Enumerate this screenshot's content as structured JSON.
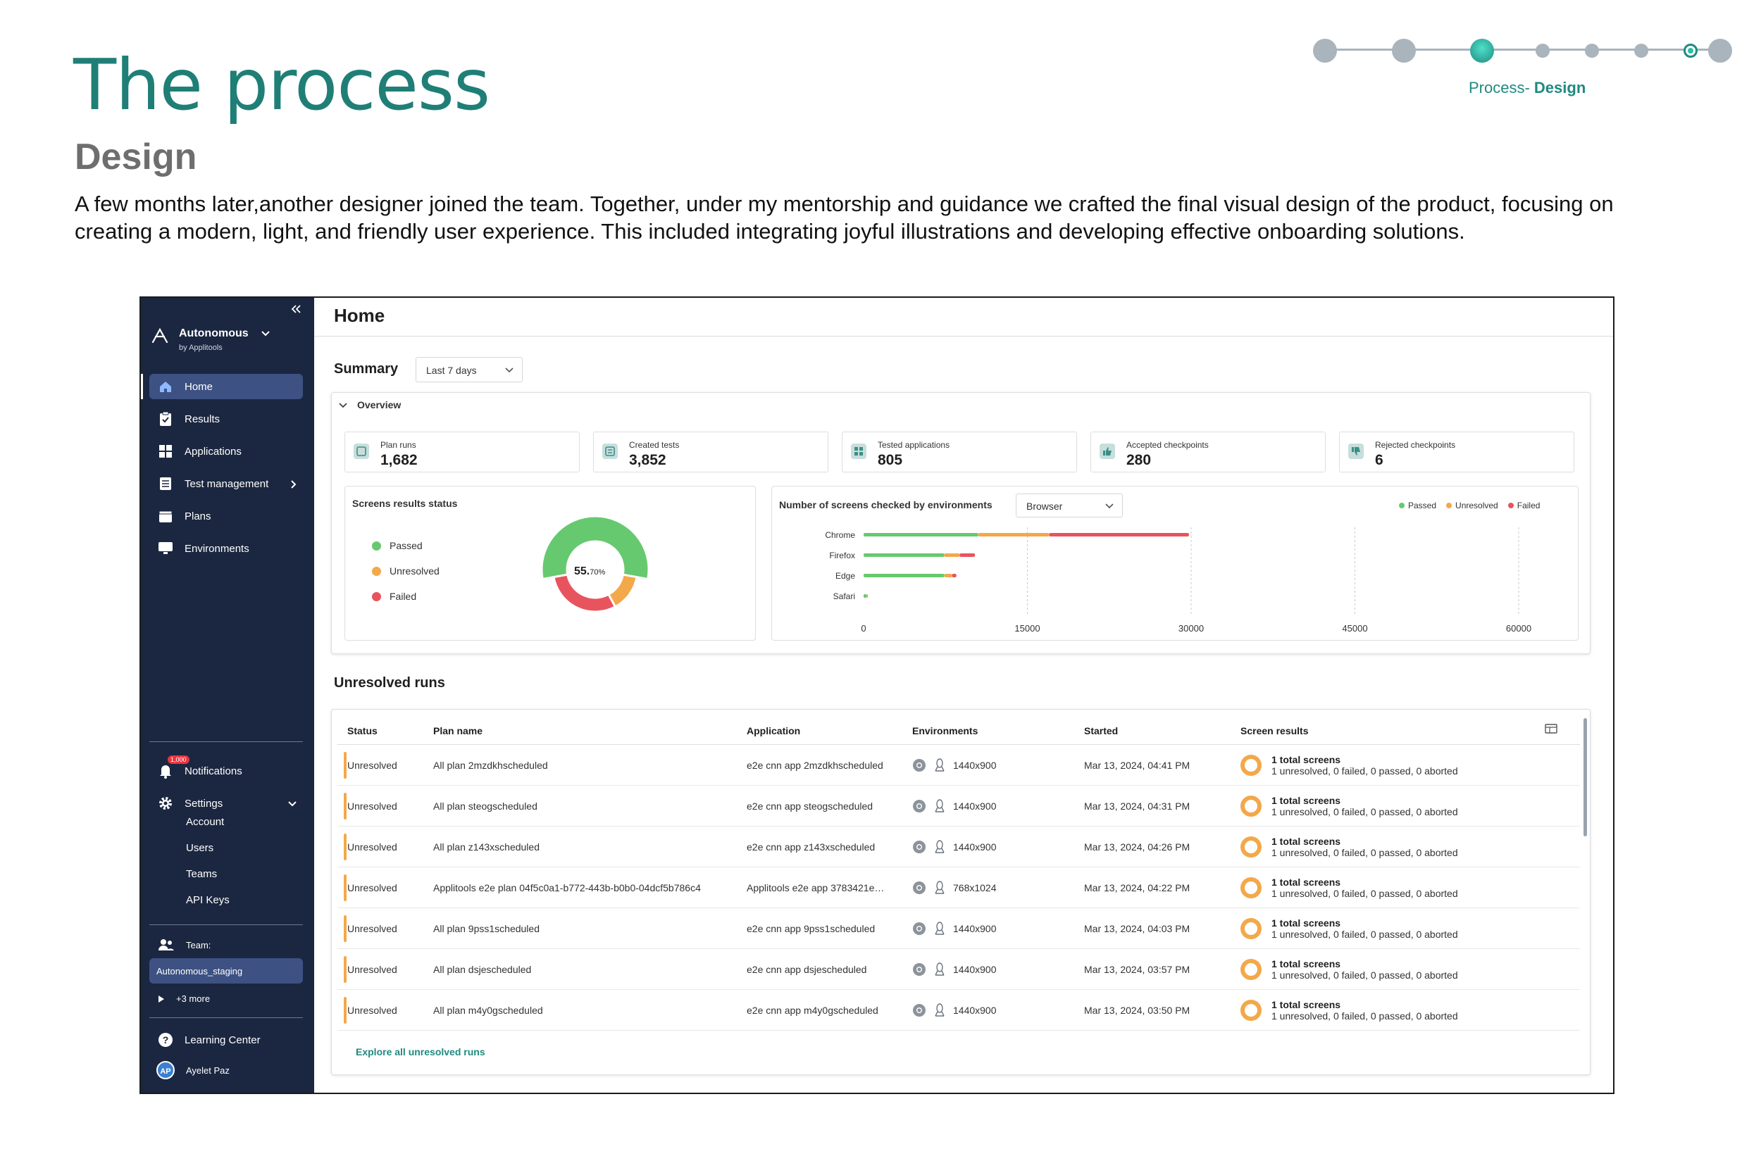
{
  "slide": {
    "title": "The process",
    "subtitle": "Design",
    "description": "A few months later,another designer joined the team. Together, under my mentorship and guidance we crafted the final visual design of the product, focusing on creating a modern, light, and friendly user experience. This included integrating joyful illustrations and developing effective onboarding solutions.",
    "process_prefix": "Process- ",
    "process_step": "Design",
    "accent_color": "#1f7f76"
  },
  "sidebar": {
    "collapse_icon": "double-chevron-left-icon",
    "brand": "Autonomous",
    "brand_sub": "by Applitools",
    "nav": [
      {
        "label": "Home",
        "icon": "home-icon",
        "active": true
      },
      {
        "label": "Results",
        "icon": "clipboard-icon"
      },
      {
        "label": "Applications",
        "icon": "grid-icon"
      },
      {
        "label": "Test management",
        "icon": "list-icon"
      },
      {
        "label": "Plans",
        "icon": "calendar-icon"
      },
      {
        "label": "Environments",
        "icon": "monitor-icon"
      }
    ],
    "notifications_label": "Notifications",
    "notifications_badge": "1,000",
    "settings_label": "Settings",
    "settings_items": [
      "Account",
      "Users",
      "Teams",
      "API Keys"
    ],
    "team_label": "Team:",
    "team_value": "Autonomous_staging",
    "team_more": "+3 more",
    "learning_center": "Learning Center",
    "user_initials": "AP",
    "user_name": "Ayelet Paz"
  },
  "main": {
    "title": "Home",
    "summary_label": "Summary",
    "period_select": "Last 7 days",
    "overview_label": "Overview",
    "stats": [
      {
        "label": "Plan runs",
        "value": "1,682"
      },
      {
        "label": "Created tests",
        "value": "3,852"
      },
      {
        "label": "Tested applications",
        "value": "805"
      },
      {
        "label": "Accepted checkpoints",
        "value": "280"
      },
      {
        "label": "Rejected checkpoints",
        "value": "6"
      }
    ],
    "screens_status_title": "Screens results status",
    "screens_legend": [
      "Passed",
      "Unresolved",
      "Failed"
    ],
    "donut_value": "55.",
    "donut_small": "70%",
    "env_chart_title": "Number of screens checked by environments",
    "env_select": "Browser",
    "env_legend": [
      "Passed",
      "Unresolved",
      "Failed"
    ],
    "unresolved_title": "Unresolved runs",
    "columns": [
      "Status",
      "Plan name",
      "Application",
      "Environments",
      "Started",
      "Screen results"
    ],
    "rows": [
      {
        "status": "Unresolved",
        "plan": "All plan 2mzdkhscheduled",
        "app": "e2e cnn app 2mzdkhscheduled",
        "res": "1440x900",
        "started": "Mar 13, 2024, 04:41 PM",
        "total": "1 total screens",
        "detail": "1 unresolved, 0 failed, 0 passed, 0 aborted"
      },
      {
        "status": "Unresolved",
        "plan": "All plan steogscheduled",
        "app": "e2e cnn app steogscheduled",
        "res": "1440x900",
        "started": "Mar 13, 2024, 04:31 PM",
        "total": "1 total screens",
        "detail": "1 unresolved, 0 failed, 0 passed, 0 aborted"
      },
      {
        "status": "Unresolved",
        "plan": "All plan z143xscheduled",
        "app": "e2e cnn app z143xscheduled",
        "res": "1440x900",
        "started": "Mar 13, 2024, 04:26 PM",
        "total": "1 total screens",
        "detail": "1 unresolved, 0 failed, 0 passed, 0 aborted"
      },
      {
        "status": "Unresolved",
        "plan": "Applitools e2e plan 04f5c0a1-b772-443b-b0b0-04dcf5b786c4",
        "app": "Applitools e2e app 3783421e…",
        "res": "768x1024",
        "started": "Mar 13, 2024, 04:22 PM",
        "total": "1 total screens",
        "detail": "1 unresolved, 0 failed, 0 passed, 0 aborted"
      },
      {
        "status": "Unresolved",
        "plan": "All plan 9pss1scheduled",
        "app": "e2e cnn app 9pss1scheduled",
        "res": "1440x900",
        "started": "Mar 13, 2024, 04:03 PM",
        "total": "1 total screens",
        "detail": "1 unresolved, 0 failed, 0 passed, 0 aborted"
      },
      {
        "status": "Unresolved",
        "plan": "All plan dsjescheduled",
        "app": "e2e cnn app dsjescheduled",
        "res": "1440x900",
        "started": "Mar 13, 2024, 03:57 PM",
        "total": "1 total screens",
        "detail": "1 unresolved, 0 failed, 0 passed, 0 aborted"
      },
      {
        "status": "Unresolved",
        "plan": "All plan m4y0gscheduled",
        "app": "e2e cnn app m4y0gscheduled",
        "res": "1440x900",
        "started": "Mar 13, 2024, 03:50 PM",
        "total": "1 total screens",
        "detail": "1 unresolved, 0 failed, 0 passed, 0 aborted"
      }
    ],
    "explore_link": "Explore all unresolved runs"
  },
  "colors": {
    "passed": "#67c96f",
    "unresolved": "#f3a84a",
    "failed": "#e8545e"
  },
  "chart_data": [
    {
      "type": "pie",
      "title": "Screens results status",
      "labels": [
        "Passed",
        "Unresolved",
        "Failed"
      ],
      "values": [
        55.7,
        14.3,
        30.0
      ],
      "center_label": "55.70%"
    },
    {
      "type": "bar",
      "orientation": "horizontal",
      "stacked": true,
      "title": "Number of screens checked by environments",
      "categories": [
        "Chrome",
        "Firefox",
        "Edge",
        "Safari"
      ],
      "series": [
        {
          "name": "Passed",
          "values": [
            10500,
            7400,
            7400,
            300
          ]
        },
        {
          "name": "Unresolved",
          "values": [
            6500,
            1400,
            700,
            100
          ]
        },
        {
          "name": "Failed",
          "values": [
            12800,
            1400,
            400,
            0
          ]
        }
      ],
      "xticks": [
        "0",
        "15000",
        "30000",
        "45000",
        "60000"
      ],
      "xlim": [
        0,
        60000
      ],
      "legend": "top-right",
      "grid": true
    }
  ]
}
